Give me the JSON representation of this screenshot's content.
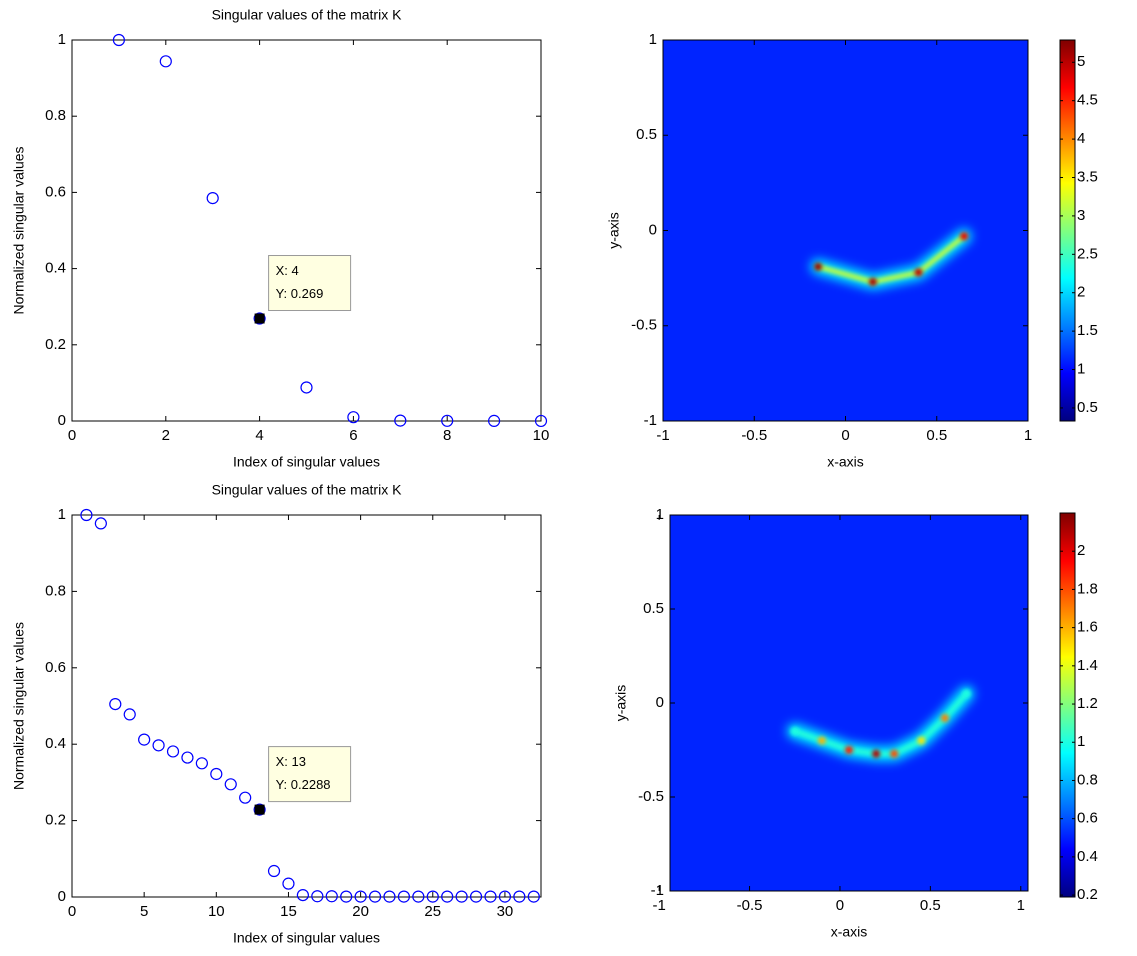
{
  "chart_data": [
    {
      "type": "scatter",
      "title": "Singular values of the matrix K",
      "x_label": "Index of singular values",
      "y_label": "Normalized singular values",
      "x": [
        1,
        2,
        3,
        4,
        5,
        6,
        7,
        8,
        9,
        10
      ],
      "series": [
        {
          "color": "#0000ff",
          "values": [
            1,
            0.944,
            0.585,
            0.269,
            0.088,
            0.01,
            0.001,
            0.0005,
            0.0003,
            0.0002
          ]
        }
      ],
      "xlim": [
        0,
        10
      ],
      "xticks": [
        0,
        2,
        4,
        6,
        8,
        10
      ],
      "ylim": [
        0,
        1
      ],
      "yticks": [
        0,
        0.2,
        0.4,
        0.6,
        0.8,
        1
      ],
      "annotation": {
        "x": 4,
        "y": 0.269,
        "lines": [
          "X: 4",
          "Y: 0.269"
        ]
      }
    },
    {
      "type": "heatmap",
      "x_label": "x-axis",
      "y_label": "y-axis",
      "colormap": "jet",
      "xlim": [
        -1,
        1
      ],
      "xticks": [
        -1,
        -0.5,
        0,
        0.5,
        1
      ],
      "ylim": [
        -1,
        1
      ],
      "yticks": [
        -1,
        -0.5,
        0,
        0.5,
        1
      ],
      "clim": [
        0.33,
        5.29
      ],
      "cticks": [
        0.5,
        1,
        1.5,
        2,
        2.5,
        3,
        3.5,
        4,
        4.5,
        5
      ],
      "peaks": {
        "x": [
          -0.15,
          0.15,
          0.4,
          0.65
        ],
        "y": [
          -0.19,
          -0.27,
          -0.22,
          -0.03
        ],
        "values": [
          5.2,
          5.1,
          5.0,
          4.8
        ]
      }
    },
    {
      "type": "scatter",
      "title": "Singular values of the matrix K",
      "x_label": "Index of singular values",
      "y_label": "Normalized singular values",
      "x": [
        1,
        2,
        3,
        4,
        5,
        6,
        7,
        8,
        9,
        10,
        11,
        12,
        13,
        14,
        15,
        16,
        17,
        18,
        19,
        20,
        21,
        22,
        23,
        24,
        25,
        26,
        27,
        28,
        29,
        30,
        31,
        32
      ],
      "series": [
        {
          "color": "#0000ff",
          "values": [
            1,
            0.978,
            0.505,
            0.478,
            0.412,
            0.397,
            0.381,
            0.365,
            0.35,
            0.322,
            0.295,
            0.26,
            0.2288,
            0.068,
            0.035,
            0.005,
            0.002,
            0.002,
            0.001,
            0.001,
            0.001,
            0.001,
            0.001,
            0.001,
            0.001,
            0.001,
            0.001,
            0.001,
            0.001,
            0.001,
            0.001,
            0.001
          ]
        }
      ],
      "xlim": [
        0,
        32.5
      ],
      "xticks": [
        0,
        5,
        10,
        15,
        20,
        25,
        30
      ],
      "ylim": [
        0,
        1
      ],
      "yticks": [
        0,
        0.2,
        0.4,
        0.6,
        0.8,
        1
      ],
      "annotation": {
        "x": 13,
        "y": 0.2288,
        "lines": [
          "X: 13",
          "Y: 0.2288"
        ]
      }
    },
    {
      "type": "heatmap",
      "x_label": "x-axis",
      "y_label": "y-axis",
      "colormap": "jet",
      "xlim": [
        -0.94,
        1.04
      ],
      "xticks": [
        -1,
        -0.5,
        0,
        0.5,
        1
      ],
      "ylim": [
        -1,
        1
      ],
      "yticks": [
        -1,
        -0.5,
        0,
        0.5,
        1
      ],
      "clim": [
        0.19,
        2.2
      ],
      "cticks": [
        0.2,
        0.4,
        0.6,
        0.8,
        1,
        1.2,
        1.4,
        1.6,
        1.8,
        2
      ],
      "peaks": {
        "x": [
          -0.25,
          -0.1,
          0.05,
          0.2,
          0.3,
          0.45,
          0.58,
          0.7
        ],
        "y": [
          -0.15,
          -0.2,
          -0.25,
          -0.27,
          -0.27,
          -0.2,
          -0.08,
          0.05
        ],
        "values": [
          1.0,
          1.6,
          1.9,
          2.1,
          1.8,
          1.5,
          1.7,
          1.0
        ]
      }
    }
  ]
}
